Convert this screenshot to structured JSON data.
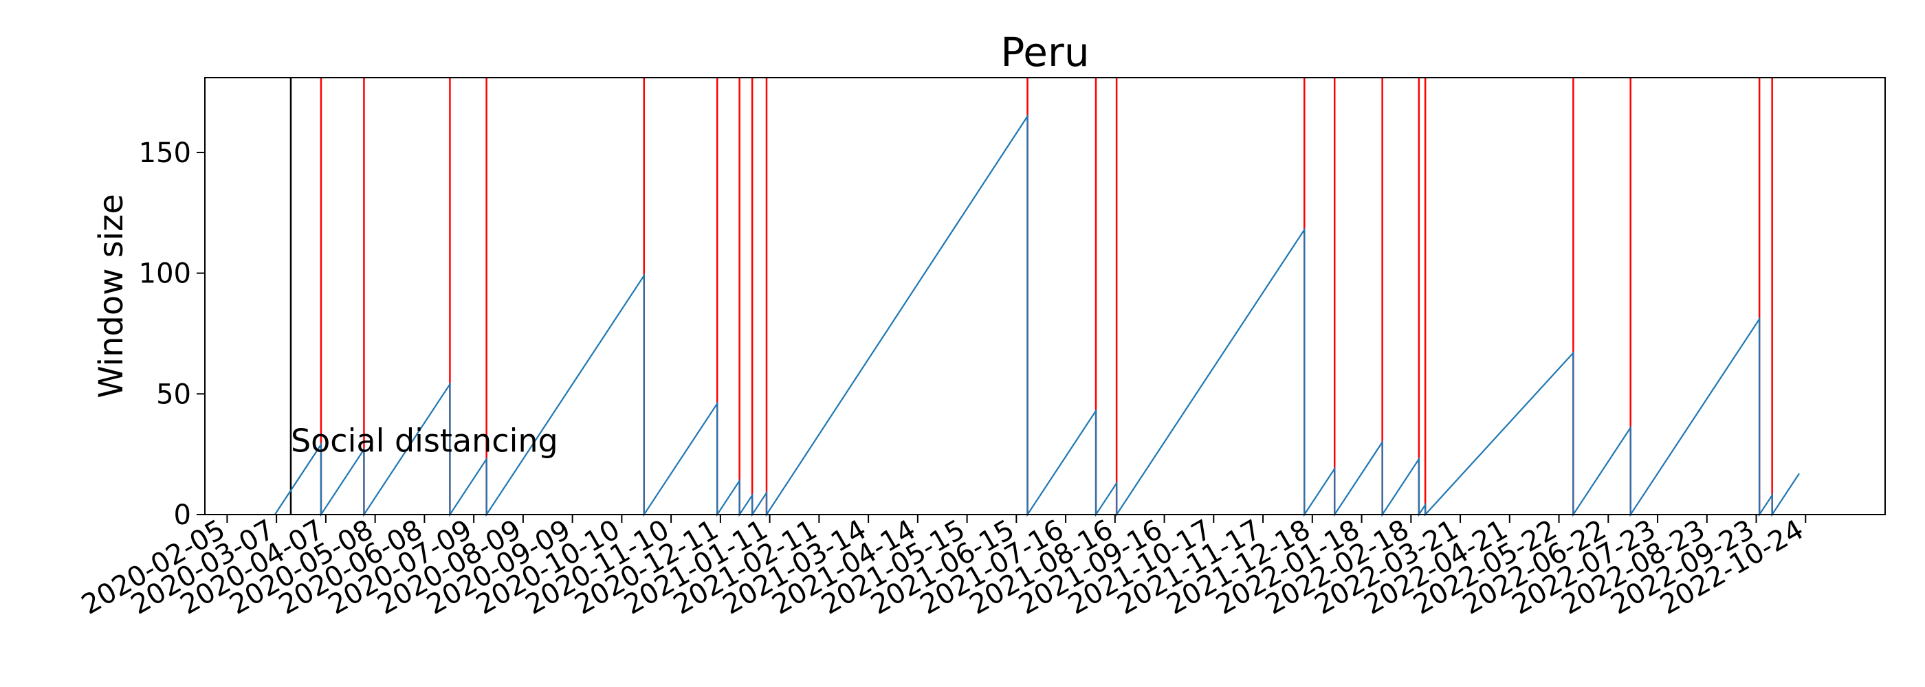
{
  "chart_data": {
    "type": "line",
    "title": "Peru",
    "xlabel": "",
    "ylabel": "Window size",
    "x_axis": "date",
    "xlim": [
      "2020-01-22",
      "2022-12-13"
    ],
    "ylim": [
      0,
      181
    ],
    "yticks": [
      0,
      50,
      100,
      150
    ],
    "xticks": [
      "2020-02-05",
      "2020-03-07",
      "2020-04-07",
      "2020-05-08",
      "2020-06-08",
      "2020-07-09",
      "2020-08-09",
      "2020-09-09",
      "2020-10-10",
      "2020-11-10",
      "2020-12-11",
      "2021-01-11",
      "2021-02-11",
      "2021-03-14",
      "2021-04-14",
      "2021-05-15",
      "2021-06-15",
      "2021-07-16",
      "2021-08-16",
      "2021-09-16",
      "2021-10-17",
      "2021-11-17",
      "2021-12-18",
      "2022-01-18",
      "2022-02-18",
      "2022-03-21",
      "2022-04-21",
      "2022-05-22",
      "2022-06-22",
      "2022-07-23",
      "2022-08-23",
      "2022-09-23",
      "2022-10-24"
    ],
    "grid": false,
    "series": [
      {
        "color": "#1f77b4",
        "x": [
          "2020-03-06",
          "2020-04-04",
          "2020-04-04",
          "2020-05-01",
          "2020-05-01",
          "2020-06-24",
          "2020-06-24",
          "2020-07-17",
          "2020-07-17",
          "2020-10-24",
          "2020-10-24",
          "2020-12-09",
          "2020-12-09",
          "2020-12-23",
          "2020-12-23",
          "2020-12-31",
          "2020-12-31",
          "2021-01-09",
          "2021-01-09",
          "2021-06-22",
          "2021-06-22",
          "2021-08-04",
          "2021-08-04",
          "2021-08-17",
          "2021-08-17",
          "2021-12-13",
          "2021-12-13",
          "2022-01-01",
          "2022-01-01",
          "2022-01-31",
          "2022-01-31",
          "2022-02-23",
          "2022-02-23",
          "2022-02-27",
          "2022-02-27",
          "2022-05-31",
          "2022-05-31",
          "2022-07-06",
          "2022-07-06",
          "2022-09-25",
          "2022-09-25",
          "2022-10-03",
          "2022-10-03",
          "2022-10-20"
        ],
        "y": [
          0,
          29,
          0,
          27,
          0,
          54,
          0,
          23,
          0,
          99,
          0,
          46,
          0,
          14,
          0,
          8,
          0,
          9,
          0,
          165,
          0,
          43,
          0,
          13,
          0,
          118,
          0,
          19,
          0,
          30,
          0,
          23,
          0,
          4,
          0,
          67,
          0,
          36,
          0,
          81,
          0,
          8,
          0,
          17
        ]
      }
    ],
    "vlines": [
      {
        "date": "2020-03-16",
        "color": "#000000"
      },
      {
        "date": "2020-04-04",
        "color": "#ff0000"
      },
      {
        "date": "2020-05-01",
        "color": "#ff0000"
      },
      {
        "date": "2020-06-24",
        "color": "#ff0000"
      },
      {
        "date": "2020-07-17",
        "color": "#ff0000"
      },
      {
        "date": "2020-10-24",
        "color": "#ff0000"
      },
      {
        "date": "2020-12-09",
        "color": "#ff0000"
      },
      {
        "date": "2020-12-23",
        "color": "#ff0000"
      },
      {
        "date": "2020-12-31",
        "color": "#ff0000"
      },
      {
        "date": "2021-01-09",
        "color": "#ff0000"
      },
      {
        "date": "2021-06-22",
        "color": "#ff0000"
      },
      {
        "date": "2021-08-04",
        "color": "#ff0000"
      },
      {
        "date": "2021-08-17",
        "color": "#ff0000"
      },
      {
        "date": "2021-12-13",
        "color": "#ff0000"
      },
      {
        "date": "2022-01-01",
        "color": "#ff0000"
      },
      {
        "date": "2022-01-31",
        "color": "#ff0000"
      },
      {
        "date": "2022-02-23",
        "color": "#ff0000"
      },
      {
        "date": "2022-02-27",
        "color": "#ff0000"
      },
      {
        "date": "2022-05-31",
        "color": "#ff0000"
      },
      {
        "date": "2022-07-06",
        "color": "#ff0000"
      },
      {
        "date": "2022-09-25",
        "color": "#ff0000"
      },
      {
        "date": "2022-10-03",
        "color": "#ff0000"
      }
    ],
    "annotations": [
      {
        "text": "Social distancing",
        "x": "2020-03-16",
        "y": 26
      }
    ]
  }
}
